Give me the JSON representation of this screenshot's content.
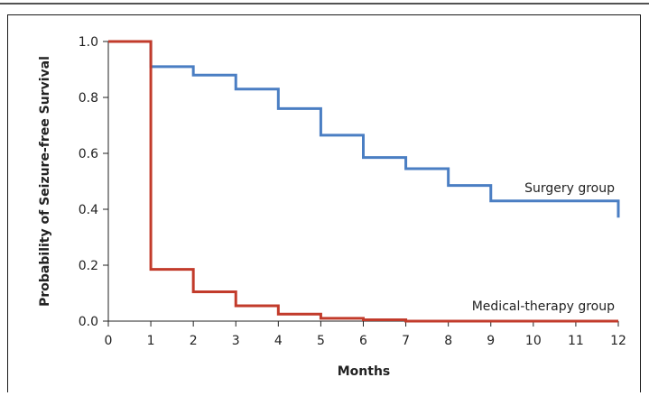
{
  "chart_data": {
    "type": "line",
    "title": "",
    "xlabel": "Months",
    "ylabel": "Probability of Seizure-free Survival",
    "xlim": [
      0,
      12
    ],
    "ylim": [
      0,
      1.0
    ],
    "xticks": [
      "0",
      "1",
      "2",
      "3",
      "4",
      "5",
      "6",
      "7",
      "8",
      "9",
      "10",
      "11",
      "12"
    ],
    "yticks": [
      "0.0",
      "0.2",
      "0.4",
      "0.6",
      "0.8",
      "1.0"
    ],
    "grid": false,
    "step": true,
    "series": [
      {
        "name": "Surgery group",
        "color": "#4a7ec3",
        "x": [
          0,
          1,
          2,
          3,
          4,
          5,
          6,
          7,
          8,
          9,
          12
        ],
        "y": [
          1.0,
          0.91,
          0.88,
          0.83,
          0.76,
          0.665,
          0.585,
          0.545,
          0.485,
          0.43,
          0.37
        ]
      },
      {
        "name": "Medical-therapy group",
        "color": "#c23b2b",
        "x": [
          0,
          1,
          2,
          3,
          4,
          5,
          6,
          7,
          12
        ],
        "y": [
          1.0,
          0.185,
          0.105,
          0.055,
          0.025,
          0.01,
          0.005,
          0.0,
          0.0
        ]
      }
    ]
  }
}
